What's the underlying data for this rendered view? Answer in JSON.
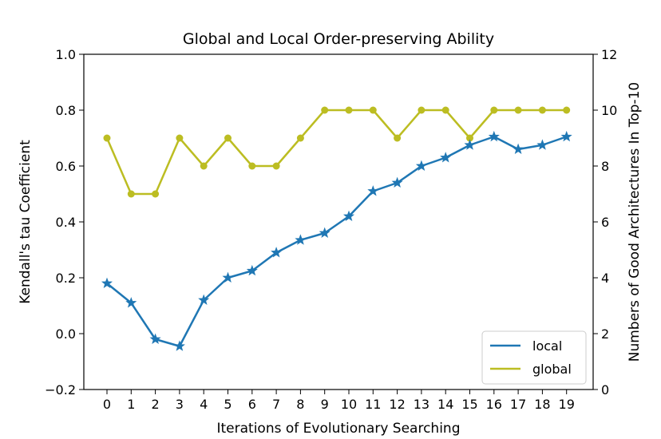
{
  "chart_data": {
    "type": "line",
    "title": "Global and Local Order-preserving Ability",
    "xlabel": "Iterations of Evolutionary Searching",
    "ylabel": "Kendall's tau Coefficient",
    "ylabel_right": "Numbers of Good Architectures In Top-10",
    "x": [
      0,
      1,
      2,
      3,
      4,
      5,
      6,
      7,
      8,
      9,
      10,
      11,
      12,
      13,
      14,
      15,
      16,
      17,
      18,
      19
    ],
    "xticks": [
      "0",
      "1",
      "2",
      "3",
      "4",
      "5",
      "6",
      "7",
      "8",
      "9",
      "10",
      "11",
      "12",
      "13",
      "14",
      "15",
      "16",
      "17",
      "18",
      "19"
    ],
    "ylim": [
      -0.2,
      1.0
    ],
    "yticks": [
      "−0.2",
      "0.0",
      "0.2",
      "0.4",
      "0.6",
      "0.8",
      "1.0"
    ],
    "ylim_right": [
      0,
      12
    ],
    "yticks_right": [
      "0",
      "2",
      "4",
      "6",
      "8",
      "10",
      "12"
    ],
    "grid": false,
    "legend_position": "lower-right",
    "series": [
      {
        "name": "local",
        "axis": "left",
        "color": "#1f77b4",
        "marker": "star",
        "values": [
          0.18,
          0.11,
          -0.02,
          -0.045,
          0.12,
          0.2,
          0.225,
          0.29,
          0.335,
          0.36,
          0.42,
          0.51,
          0.54,
          0.6,
          0.63,
          0.675,
          0.705,
          0.66,
          0.675,
          0.705
        ]
      },
      {
        "name": "global",
        "axis": "right",
        "color": "#bcbd22",
        "marker": "circle",
        "values": [
          9,
          7,
          7,
          9,
          8,
          9,
          8,
          8,
          9,
          10,
          10,
          10,
          9,
          10,
          10,
          9,
          10,
          10,
          10,
          10
        ]
      }
    ]
  }
}
